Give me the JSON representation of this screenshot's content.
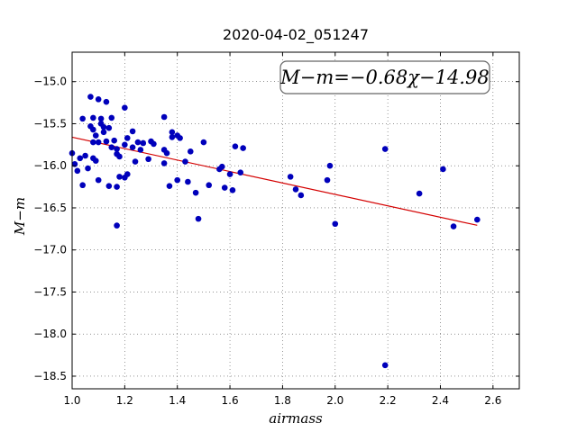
{
  "chart_data": {
    "type": "scatter",
    "title": "2020-04-02_051247",
    "xlabel": "airmass",
    "ylabel": "M−m",
    "annotation": "M−m=−0.68χ−14.98",
    "xlim": [
      1.0,
      2.7
    ],
    "ylim": [
      -18.65,
      -14.65
    ],
    "y_inverted": true,
    "grid": true,
    "xticks": [
      1.0,
      1.2,
      1.4,
      1.6,
      1.8,
      2.0,
      2.2,
      2.4,
      2.6
    ],
    "xtick_labels": [
      "1.0",
      "1.2",
      "1.4",
      "1.6",
      "1.8",
      "2.0",
      "2.2",
      "2.4",
      "2.6"
    ],
    "yticks": [
      -15.0,
      -15.5,
      -16.0,
      -16.5,
      -17.0,
      -17.5,
      -18.0,
      -18.5
    ],
    "ytick_labels": [
      "−15.0",
      "−15.5",
      "−16.0",
      "−16.5",
      "−17.0",
      "−17.5",
      "−18.0",
      "−18.5"
    ],
    "fit": {
      "slope": -0.68,
      "intercept": -14.98,
      "x_range": [
        1.0,
        2.54
      ],
      "color": "#d40000"
    },
    "point_color": "#0000bb",
    "points": [
      [
        1.0,
        -15.85
      ],
      [
        1.01,
        -15.98
      ],
      [
        1.02,
        -16.06
      ],
      [
        1.03,
        -15.91
      ],
      [
        1.04,
        -15.44
      ],
      [
        1.04,
        -16.23
      ],
      [
        1.05,
        -15.88
      ],
      [
        1.06,
        -16.03
      ],
      [
        1.07,
        -15.53
      ],
      [
        1.08,
        -15.57
      ],
      [
        1.08,
        -15.72
      ],
      [
        1.08,
        -15.91
      ],
      [
        1.08,
        -15.43
      ],
      [
        1.07,
        -15.18
      ],
      [
        1.09,
        -15.64
      ],
      [
        1.09,
        -15.94
      ],
      [
        1.1,
        -15.21
      ],
      [
        1.1,
        -15.72
      ],
      [
        1.1,
        -16.17
      ],
      [
        1.11,
        -15.44
      ],
      [
        1.11,
        -15.5
      ],
      [
        1.12,
        -15.54
      ],
      [
        1.12,
        -15.6
      ],
      [
        1.13,
        -15.71
      ],
      [
        1.13,
        -15.24
      ],
      [
        1.14,
        -15.55
      ],
      [
        1.14,
        -16.24
      ],
      [
        1.15,
        -15.78
      ],
      [
        1.15,
        -15.43
      ],
      [
        1.16,
        -15.7
      ],
      [
        1.17,
        -15.8
      ],
      [
        1.17,
        -15.86
      ],
      [
        1.17,
        -16.25
      ],
      [
        1.18,
        -16.13
      ],
      [
        1.18,
        -15.89
      ],
      [
        1.17,
        -16.71
      ],
      [
        1.2,
        -15.31
      ],
      [
        1.2,
        -15.75
      ],
      [
        1.2,
        -16.14
      ],
      [
        1.21,
        -16.1
      ],
      [
        1.21,
        -15.67
      ],
      [
        1.23,
        -15.59
      ],
      [
        1.23,
        -15.78
      ],
      [
        1.24,
        -15.95
      ],
      [
        1.25,
        -15.72
      ],
      [
        1.26,
        -15.81
      ],
      [
        1.27,
        -15.73
      ],
      [
        1.29,
        -15.92
      ],
      [
        1.3,
        -15.71
      ],
      [
        1.31,
        -15.74
      ],
      [
        1.35,
        -15.42
      ],
      [
        1.35,
        -15.81
      ],
      [
        1.36,
        -15.85
      ],
      [
        1.35,
        -15.97
      ],
      [
        1.37,
        -16.24
      ],
      [
        1.38,
        -15.6
      ],
      [
        1.38,
        -15.66
      ],
      [
        1.4,
        -15.64
      ],
      [
        1.4,
        -16.17
      ],
      [
        1.41,
        -15.67
      ],
      [
        1.43,
        -15.95
      ],
      [
        1.44,
        -16.19
      ],
      [
        1.45,
        -15.83
      ],
      [
        1.47,
        -16.32
      ],
      [
        1.48,
        -16.63
      ],
      [
        1.5,
        -15.72
      ],
      [
        1.52,
        -16.23
      ],
      [
        1.56,
        -16.04
      ],
      [
        1.57,
        -16.01
      ],
      [
        1.58,
        -16.26
      ],
      [
        1.6,
        -16.1
      ],
      [
        1.61,
        -16.29
      ],
      [
        1.62,
        -15.77
      ],
      [
        1.64,
        -16.08
      ],
      [
        1.65,
        -15.79
      ],
      [
        1.83,
        -16.13
      ],
      [
        1.85,
        -16.28
      ],
      [
        1.87,
        -16.35
      ],
      [
        1.97,
        -16.17
      ],
      [
        1.98,
        -16.0
      ],
      [
        2.0,
        -16.69
      ],
      [
        2.19,
        -15.8
      ],
      [
        2.19,
        -18.37
      ],
      [
        2.32,
        -16.33
      ],
      [
        2.41,
        -16.04
      ],
      [
        2.45,
        -16.72
      ],
      [
        2.54,
        -16.64
      ]
    ]
  }
}
